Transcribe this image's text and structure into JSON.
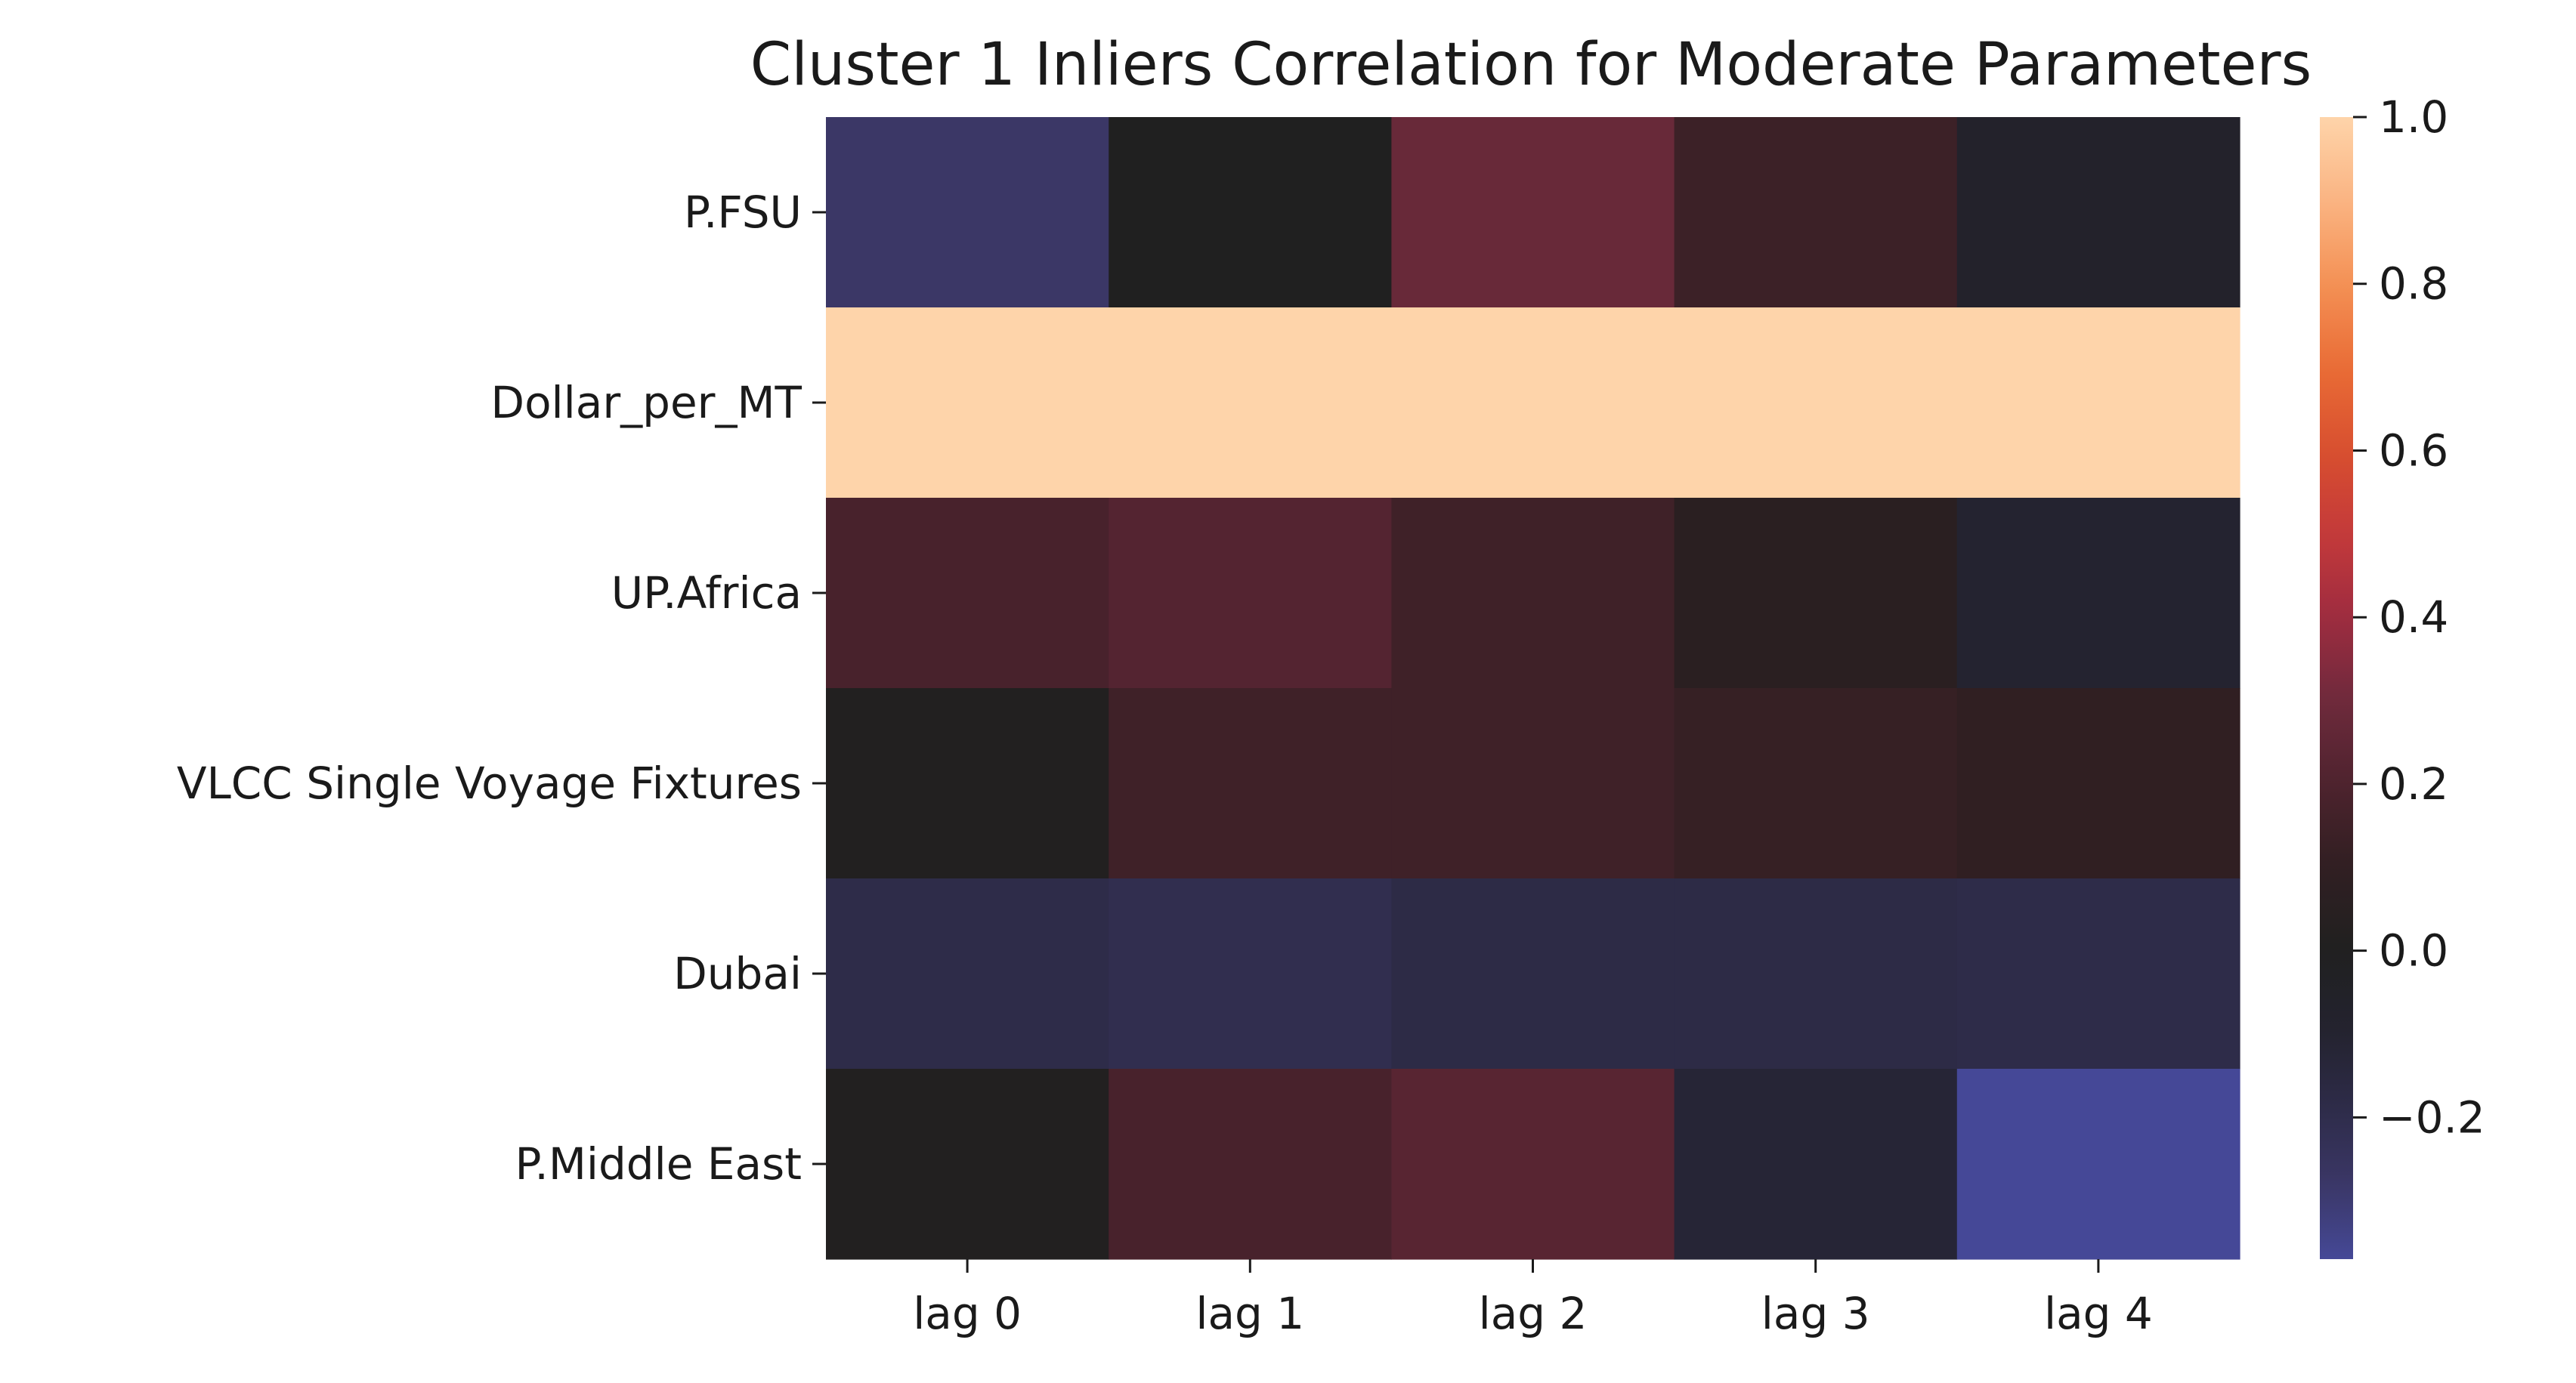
{
  "chart_data": {
    "type": "heatmap",
    "title": "Cluster 1 Inliers Correlation for Moderate Parameters",
    "xlabel": "",
    "ylabel": "",
    "x_categories": [
      "lag 0",
      "lag 1",
      "lag 2",
      "lag 3",
      "lag 4"
    ],
    "y_categories": [
      "P.FSU",
      "Dollar_per_MT",
      "UP.Africa",
      "VLCC Single Voyage Fixtures",
      "Dubai",
      "P.Middle East"
    ],
    "values": [
      [
        -0.28,
        0.0,
        0.28,
        0.14,
        -0.07
      ],
      [
        1.0,
        1.0,
        1.0,
        1.0,
        1.0
      ],
      [
        0.18,
        0.22,
        0.15,
        0.06,
        -0.1
      ],
      [
        0.01,
        0.15,
        0.15,
        0.12,
        0.1
      ],
      [
        -0.19,
        -0.21,
        -0.18,
        -0.18,
        -0.19
      ],
      [
        0.01,
        0.18,
        0.23,
        -0.12,
        -0.37
      ]
    ],
    "colorbar": {
      "vmin": -0.37,
      "vmax": 1.0,
      "ticks": [
        1.0,
        0.8,
        0.6,
        0.4,
        0.2,
        0.0,
        -0.2
      ],
      "tick_labels": [
        "1.0",
        "0.8",
        "0.6",
        "0.4",
        "0.2",
        "0.0",
        "−0.2"
      ]
    },
    "colormap": "icefire",
    "grid": false
  }
}
